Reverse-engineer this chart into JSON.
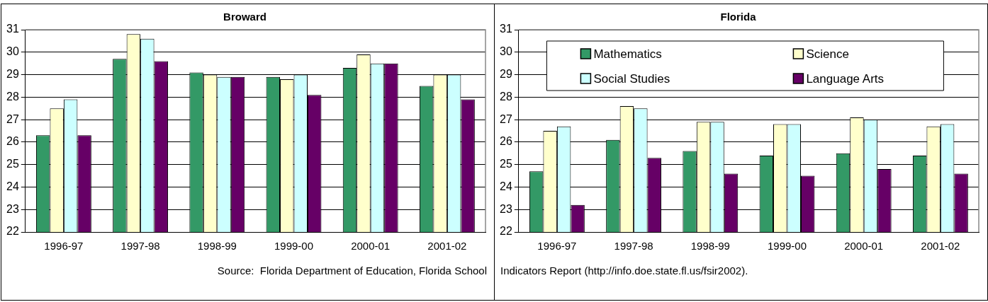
{
  "chart_data": [
    {
      "type": "bar",
      "title": "Broward",
      "categories": [
        "1996-97",
        "1997-98",
        "1998-99",
        "1999-00",
        "2000-01",
        "2001-02"
      ],
      "series": [
        {
          "color": "#339966",
          "values": [
            26.3,
            29.7,
            29.1,
            28.9,
            29.3,
            28.5
          ]
        },
        {
          "color": "#ffffcc",
          "values": [
            27.5,
            30.8,
            29.0,
            28.8,
            29.9,
            29.0
          ]
        },
        {
          "color": "#ccffff",
          "values": [
            27.9,
            30.6,
            28.9,
            29.0,
            29.5,
            29.0
          ]
        },
        {
          "color": "#660066",
          "values": [
            26.3,
            29.6,
            28.9,
            28.1,
            29.5,
            27.9
          ]
        }
      ],
      "ylim": [
        22,
        31
      ],
      "yticks": [
        22,
        23,
        24,
        25,
        26,
        27,
        28,
        29,
        30,
        31
      ],
      "grid": "y",
      "legend": false,
      "annotations": [
        "Source:  Florida Department of Education, Florida School"
      ]
    },
    {
      "type": "bar",
      "title": "Florida",
      "categories": [
        "1996-97",
        "1997-98",
        "1998-99",
        "1999-00",
        "2000-01",
        "2001-02"
      ],
      "series": [
        {
          "name": "Mathematics",
          "color": "#339966",
          "values": [
            24.7,
            26.1,
            25.6,
            25.4,
            25.5,
            25.4
          ]
        },
        {
          "name": "Science",
          "color": "#ffffcc",
          "values": [
            26.5,
            27.6,
            26.9,
            26.8,
            27.1,
            26.7
          ]
        },
        {
          "name": "Social Studies",
          "color": "#ccffff",
          "values": [
            26.7,
            27.5,
            26.9,
            26.8,
            27.0,
            26.8
          ]
        },
        {
          "name": "Language Arts",
          "color": "#660066",
          "values": [
            23.2,
            25.3,
            24.6,
            24.5,
            24.8,
            24.6
          ]
        }
      ],
      "ylim": [
        22,
        31
      ],
      "yticks": [
        22,
        23,
        24,
        25,
        26,
        27,
        28,
        29,
        30,
        31
      ],
      "grid": "y",
      "legend": "top",
      "annotations": [
        "Indicators Report (http://info.doe.state.fl.us/fsir2002)."
      ]
    }
  ]
}
